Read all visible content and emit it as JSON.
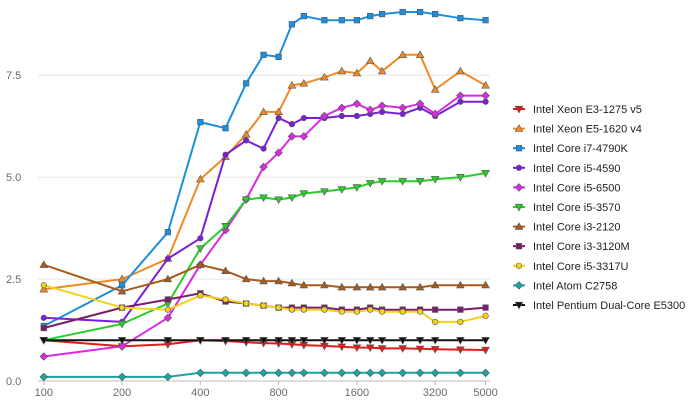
{
  "chart_data": {
    "type": "line",
    "x_scale": "log",
    "x_ticks": [
      100,
      200,
      400,
      800,
      1600,
      3200,
      5000
    ],
    "x_tick_labels": [
      "100",
      "200",
      "400",
      "800",
      "1600",
      "3200",
      "5000"
    ],
    "y_ticks": [
      0,
      2.5,
      5,
      7.5
    ],
    "y_tick_labels": [
      "0.0",
      "2.5",
      "5.0",
      "7.5"
    ],
    "ylim": [
      0,
      9.1
    ],
    "xlim": [
      95,
      5200
    ],
    "grid": "y-only",
    "legend_position": "right",
    "x": [
      100,
      200,
      300,
      400,
      500,
      600,
      700,
      800,
      900,
      1000,
      1200,
      1400,
      1600,
      1800,
      2000,
      2400,
      2800,
      3200,
      3600,
      4000,
      4400,
      4800,
      5000
    ],
    "series": [
      {
        "name": "Intel Xeon E3-1275 v5",
        "color": "#e41a1c",
        "marker": "triangle-down",
        "values": [
          1.0,
          0.85,
          0.9,
          1.0,
          0.98,
          0.95,
          0.93,
          0.92,
          0.9,
          0.88,
          0.86,
          0.84,
          0.82,
          0.82,
          0.8,
          0.8,
          0.79,
          0.78,
          0.77,
          0.76,
          0.75,
          0.75,
          0.75
        ]
      },
      {
        "name": "Intel Xeon E5-1620 v4",
        "color": "#f08a24",
        "marker": "triangle-up",
        "values": [
          2.25,
          2.5,
          3.0,
          4.95,
          5.5,
          6.05,
          6.6,
          6.6,
          7.25,
          7.3,
          7.45,
          7.6,
          7.55,
          7.85,
          7.6,
          8.0,
          8.0,
          7.15,
          7.6,
          7.25,
          null,
          null,
          null
        ]
      },
      {
        "name": "Intel Core i7-4790K",
        "color": "#1b8fe0",
        "marker": "square",
        "values": [
          1.35,
          2.35,
          3.65,
          6.35,
          6.2,
          7.3,
          8.0,
          7.95,
          8.75,
          8.95,
          8.85,
          8.85,
          8.85,
          8.95,
          9.0,
          9.05,
          9.05,
          9.0,
          8.9,
          8.85,
          8.9,
          null,
          null
        ]
      },
      {
        "name": "Intel Core i5-4590",
        "color": "#7b1fd6",
        "marker": "circle",
        "values": [
          1.55,
          1.45,
          3.0,
          3.5,
          5.55,
          5.9,
          5.7,
          6.45,
          6.3,
          6.45,
          6.45,
          6.5,
          6.5,
          6.55,
          6.6,
          6.55,
          6.7,
          6.5,
          6.85,
          6.85,
          null,
          null,
          null
        ]
      },
      {
        "name": "Intel Core i5-6500",
        "color": "#d92be0",
        "marker": "diamond",
        "values": [
          0.6,
          0.85,
          1.55,
          2.85,
          3.7,
          4.45,
          5.25,
          5.6,
          6.0,
          6.0,
          6.5,
          6.7,
          6.8,
          6.65,
          6.75,
          6.7,
          6.8,
          6.55,
          7.0,
          7.0,
          null,
          null,
          null
        ]
      },
      {
        "name": "Intel Core i5-3570",
        "color": "#2ccb2c",
        "marker": "triangle-down",
        "values": [
          1.0,
          1.4,
          1.9,
          3.25,
          3.8,
          4.45,
          4.5,
          4.45,
          4.5,
          4.6,
          4.65,
          4.7,
          4.75,
          4.85,
          4.9,
          4.9,
          4.9,
          4.95,
          5.0,
          5.1,
          null,
          null,
          null
        ]
      },
      {
        "name": "Intel Core i3-2120",
        "color": "#a65c1d",
        "marker": "triangle-up",
        "values": [
          2.85,
          2.2,
          2.5,
          2.85,
          2.7,
          2.5,
          2.45,
          2.45,
          2.4,
          2.35,
          2.35,
          2.3,
          2.3,
          2.3,
          2.3,
          2.3,
          2.3,
          2.35,
          2.35,
          2.35,
          null,
          null,
          null
        ]
      },
      {
        "name": "Intel Core i3-3120M",
        "color": "#7d1b6e",
        "marker": "square",
        "values": [
          1.3,
          1.8,
          2.0,
          2.15,
          1.95,
          1.9,
          1.85,
          1.8,
          1.8,
          1.8,
          1.8,
          1.75,
          1.75,
          1.8,
          1.75,
          1.75,
          1.75,
          1.75,
          1.75,
          1.8,
          null,
          null,
          null
        ]
      },
      {
        "name": "Intel Core i5-3317U",
        "color": "#f2d21b",
        "marker": "circle",
        "values": [
          2.35,
          1.8,
          1.75,
          2.1,
          2.0,
          1.9,
          1.85,
          1.8,
          1.75,
          1.75,
          1.75,
          1.7,
          1.7,
          1.75,
          1.7,
          1.7,
          1.7,
          1.45,
          1.45,
          1.6,
          null,
          null,
          null
        ]
      },
      {
        "name": "Intel Atom C2758",
        "color": "#1aa5a5",
        "marker": "diamond",
        "values": [
          0.1,
          0.1,
          0.1,
          0.2,
          0.2,
          0.2,
          0.2,
          0.2,
          0.2,
          0.2,
          0.2,
          0.2,
          0.2,
          0.2,
          0.2,
          0.2,
          0.2,
          0.2,
          0.2,
          0.2,
          null,
          null,
          null
        ]
      },
      {
        "name": "Intel Pentium Dual-Core E5300",
        "color": "#111111",
        "marker": "triangle-down",
        "values": [
          1.0,
          1.0,
          1.0,
          1.0,
          1.0,
          1.0,
          1.0,
          1.0,
          1.0,
          1.0,
          1.0,
          1.0,
          1.0,
          1.0,
          1.0,
          1.0,
          1.0,
          1.0,
          1.0,
          1.0,
          null,
          null,
          null
        ]
      }
    ],
    "series_x_overrides": {
      "default": [
        100,
        200,
        300,
        400,
        500,
        600,
        700,
        800,
        900,
        1000,
        1200,
        1400,
        1600,
        1800,
        2000,
        2400,
        2800,
        3200,
        4000,
        5000
      ]
    }
  }
}
